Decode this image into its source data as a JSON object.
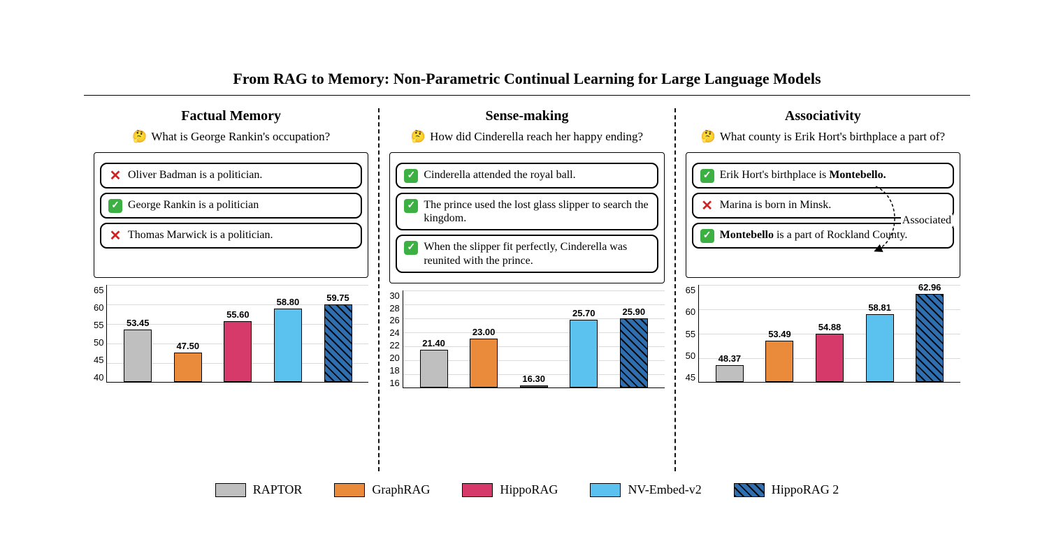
{
  "title": "From RAG to Memory: Non-Parametric Continual Learning for Large Language Models",
  "legend": [
    {
      "label": "RAPTOR",
      "color": "#bfbfbf",
      "hatched": false
    },
    {
      "label": "GraphRAG",
      "color": "#e98b3a",
      "hatched": false
    },
    {
      "label": "HippoRAG",
      "color": "#d53a6b",
      "hatched": false
    },
    {
      "label": "NV-Embed-v2",
      "color": "#5bc1ee",
      "hatched": false
    },
    {
      "label": "HippoRAG 2",
      "color": "#2f6fb0",
      "hatched": true
    }
  ],
  "panels": [
    {
      "heading": "Factual Memory",
      "question": "What is George Rankin's occupation?",
      "examples": [
        {
          "ok": false,
          "text": "Oliver Badman is a politician."
        },
        {
          "ok": true,
          "text": "George Rankin is a politician"
        },
        {
          "ok": false,
          "text": "Thomas Marwick is a politician."
        }
      ],
      "chart": {
        "ymin": 40,
        "ymax": 65,
        "ystep": 5,
        "values": [
          53.45,
          47.5,
          55.6,
          58.8,
          59.75
        ]
      }
    },
    {
      "heading": "Sense-making",
      "question": "How did Cinderella reach her happy ending?",
      "examples": [
        {
          "ok": true,
          "text": "Cinderella attended the royal ball."
        },
        {
          "ok": true,
          "text": "The prince used the lost glass slipper to search the kingdom."
        },
        {
          "ok": true,
          "text": "When the slipper fit perfectly, Cinderella was reunited with the prince."
        }
      ],
      "chart": {
        "ymin": 16,
        "ymax": 30,
        "ystep": 2,
        "values": [
          21.4,
          23.0,
          16.3,
          25.7,
          25.9
        ]
      }
    },
    {
      "heading": "Associativity",
      "question": "What county is Erik Hort's birthplace a part of?",
      "assoc_label": "Associated",
      "examples": [
        {
          "ok": true,
          "html": "Erik Hort's birthplace is <b>Montebello.</b>"
        },
        {
          "ok": false,
          "text": "Marina is born in Minsk."
        },
        {
          "ok": true,
          "html": "<b>Montebello</b> is a part of Rockland County."
        }
      ],
      "chart": {
        "ymin": 45,
        "ymax": 65,
        "ystep": 5,
        "values": [
          48.37,
          53.49,
          54.88,
          58.81,
          62.96
        ]
      }
    }
  ]
}
